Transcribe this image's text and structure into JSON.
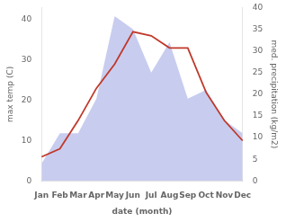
{
  "chart_data": {
    "type": "line",
    "xlabel": "date (month)",
    "ylabel": "max temp (C)",
    "y2label": "med. precipitation (kg/m2)",
    "categories": [
      "Jan",
      "Feb",
      "Mar",
      "Apr",
      "May",
      "Jun",
      "Jul",
      "Aug",
      "Sep",
      "Oct",
      "Nov",
      "Dec"
    ],
    "series": [
      {
        "type": "area",
        "color": "#b0b8e8",
        "axis": "y2",
        "values": [
          4,
          11,
          11,
          19,
          38,
          35,
          25,
          32,
          19,
          21,
          14,
          11
        ]
      },
      {
        "type": "line",
        "color": "#c0392b",
        "values": [
          6,
          8,
          15,
          23,
          29,
          37,
          36,
          33,
          33,
          22,
          15,
          10
        ]
      }
    ],
    "ylim": [
      0,
      43
    ],
    "yticks": [
      0,
      10,
      20,
      30,
      40
    ],
    "y2lim": [
      0,
      40
    ],
    "y2ticks": [
      0,
      5,
      10,
      15,
      20,
      25,
      30,
      35,
      40
    ],
    "grid": false
  }
}
